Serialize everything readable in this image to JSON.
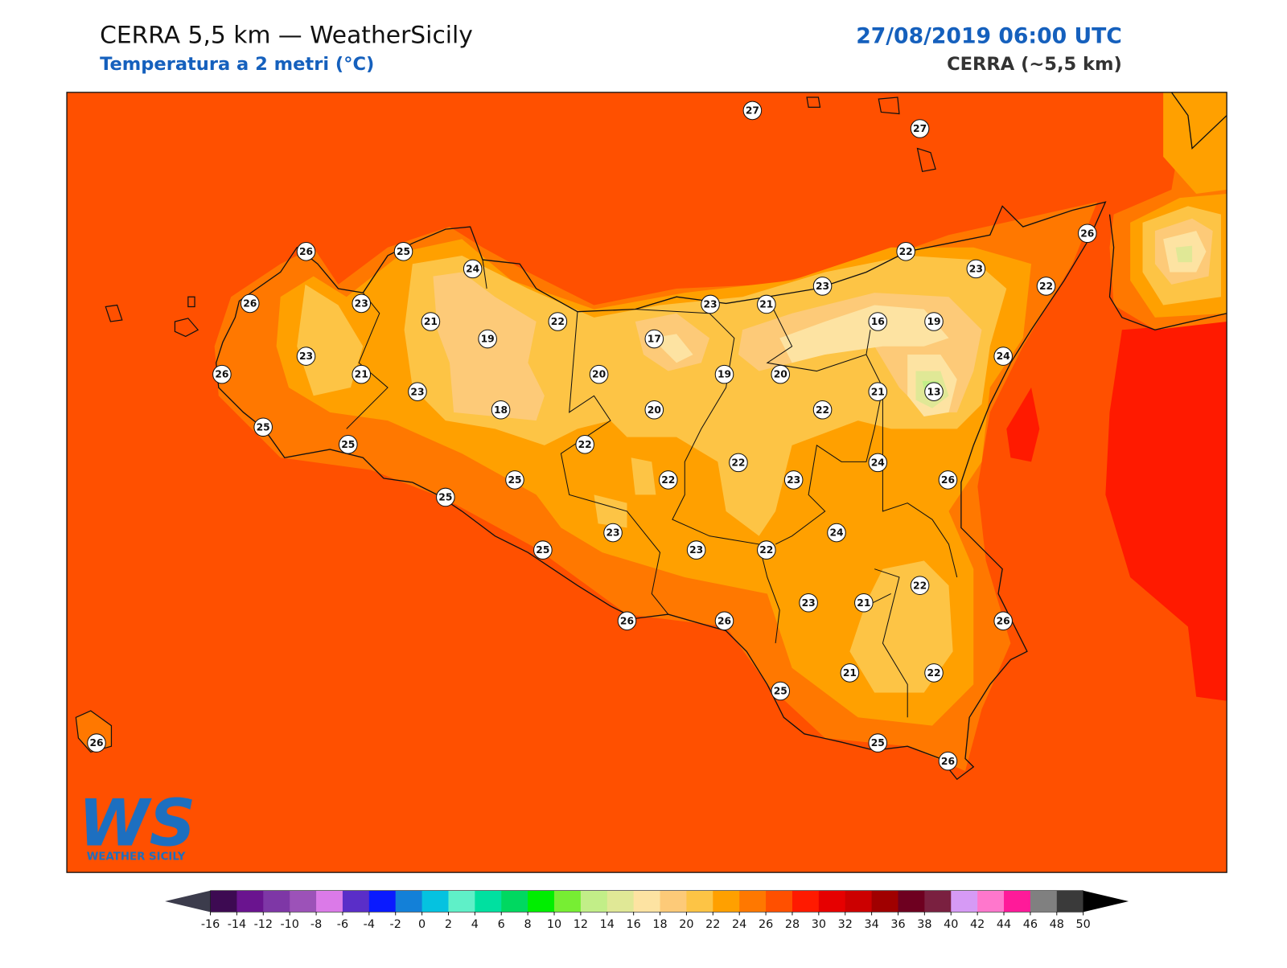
{
  "header": {
    "title": "CERRA 5,5 km — WeatherSicily",
    "subtitle": "Temperatura a 2 metri (°C)",
    "date": "27/08/2019 06:00 UTC",
    "model": "CERRA (~5,5 km)"
  },
  "logo": {
    "mark": "WS",
    "name": "WEATHER SICILY"
  },
  "station_values": [
    27,
    27,
    26,
    25,
    24,
    26,
    22,
    23,
    22,
    23,
    23,
    21,
    26,
    23,
    21,
    22,
    19,
    17,
    16,
    19,
    23,
    24,
    26,
    21,
    20,
    19,
    20,
    23,
    21,
    13,
    18,
    20,
    22,
    25,
    25,
    22,
    22,
    24,
    25,
    22,
    23,
    26,
    25,
    24,
    23,
    25,
    23,
    22,
    22,
    23,
    21,
    26,
    26,
    26,
    21,
    22,
    25,
    26,
    25,
    26
  ],
  "colorbar": {
    "ticks": [
      -16,
      -14,
      -12,
      -10,
      -8,
      -6,
      -4,
      -2,
      0,
      2,
      4,
      6,
      8,
      10,
      12,
      14,
      16,
      18,
      20,
      22,
      24,
      26,
      28,
      30,
      32,
      34,
      36,
      38,
      40,
      42,
      44,
      46,
      48,
      50
    ],
    "colors": [
      "#3d0a52",
      "#6a148f",
      "#7e37a6",
      "#9c52b8",
      "#db7ae8",
      "#5a2ec8",
      "#0a1aff",
      "#1380d8",
      "#05c2e0",
      "#5ff0c8",
      "#00e0a0",
      "#00d860",
      "#00ee00",
      "#77ee33",
      "#c2ee88",
      "#e0e896",
      "#fde3a2",
      "#fdca78",
      "#fdc445",
      "#ffa000",
      "#ff7800",
      "#ff5000",
      "#ff1a00",
      "#e60000",
      "#cc0000",
      "#a00000",
      "#6e0020",
      "#7a2040",
      "#d69af5",
      "#ff77cc",
      "#ff1a99",
      "#808080",
      "#3a3a3a"
    ],
    "under": "#3c3c4c",
    "over": "#000000"
  }
}
